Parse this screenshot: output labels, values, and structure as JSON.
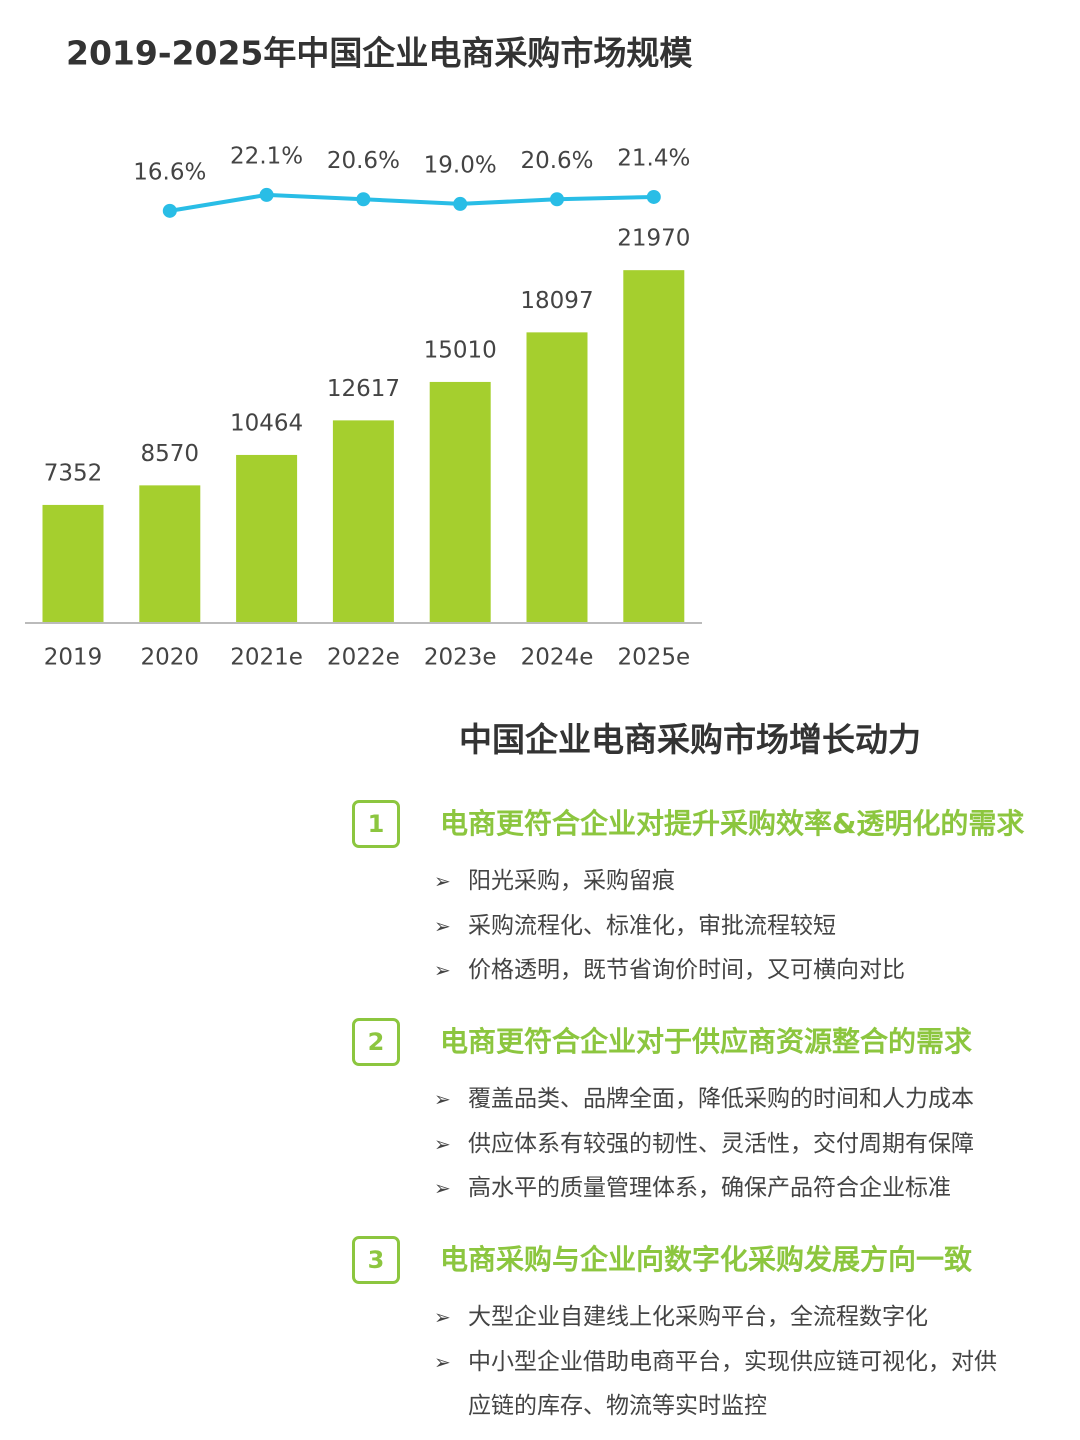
{
  "chart_data": {
    "type": "bar",
    "title": "2019-2025年中国企业电商采购市场规模",
    "categories": [
      "2019",
      "2020",
      "2021e",
      "2022e",
      "2023e",
      "2024e",
      "2025e"
    ],
    "series": [
      {
        "type": "bar",
        "color": "#a5cf2e",
        "values": [
          7352,
          8570,
          10464,
          12617,
          15010,
          18097,
          21970
        ]
      },
      {
        "type": "line",
        "axis": "y2",
        "color": "#29bde6",
        "values": [
          null,
          16.6,
          22.1,
          20.6,
          19.0,
          20.6,
          21.4
        ],
        "value_labels": [
          null,
          "16.6%",
          "22.1%",
          "20.6%",
          "19.0%",
          "20.6%",
          "21.4%"
        ]
      }
    ],
    "ylim": [
      0,
      25000
    ],
    "y2lim": [
      0,
      40
    ]
  },
  "drivers": {
    "title": "中国企业电商采购市场增长动力",
    "sections": [
      {
        "number": "1",
        "heading": "电商更符合企业对提升采购效率&透明化的需求",
        "bullets": [
          "阳光采购，采购留痕",
          "采购流程化、标准化，审批流程较短",
          "价格透明，既节省询价时间，又可横向对比"
        ]
      },
      {
        "number": "2",
        "heading": "电商更符合企业对于供应商资源整合的需求",
        "bullets": [
          "覆盖品类、品牌全面，降低采购的时间和人力成本",
          "供应体系有较强的韧性、灵活性，交付周期有保障",
          "高水平的质量管理体系，确保产品符合企业标准"
        ]
      },
      {
        "number": "3",
        "heading": "电商采购与企业向数字化采购发展方向一致",
        "bullets": [
          "大型企业自建线上化采购平台，全流程数字化",
          "中小型企业借助电商平台，实现供应链可视化，对供应链的库存、物流等实时监控"
        ]
      }
    ]
  }
}
